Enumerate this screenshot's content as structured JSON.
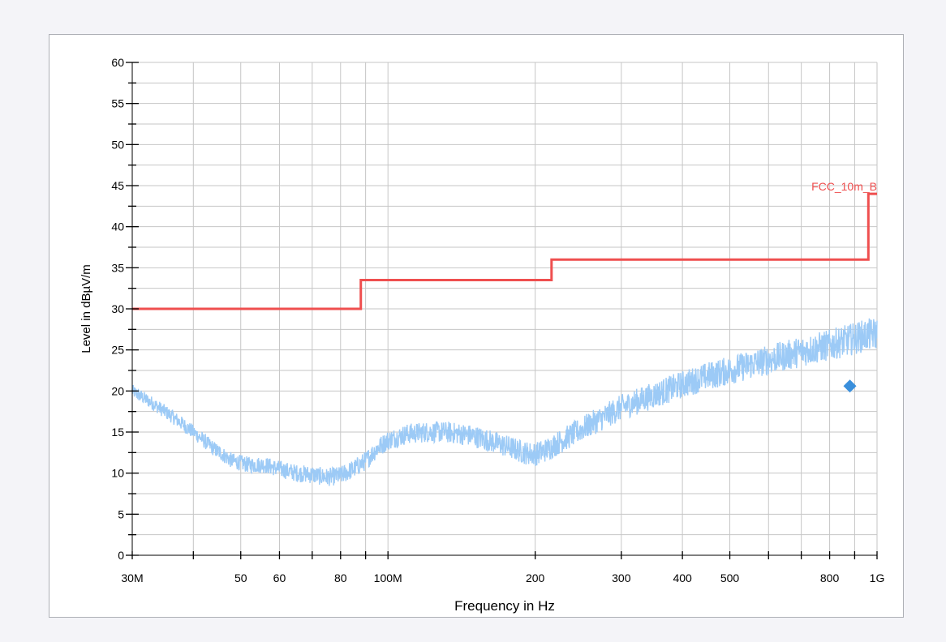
{
  "colors": {
    "limit": "#ef4f4f",
    "trace": "#9ccaf6",
    "marker": "#3a8fdc",
    "grid": "#c6c6c6",
    "axis": "#000000"
  },
  "chart_data": {
    "type": "line",
    "title": "",
    "xlabel": "Frequency in Hz",
    "ylabel": "Level in dBµV/m",
    "x_scale": "log",
    "xlim": [
      30000000,
      1000000000
    ],
    "ylim": [
      0,
      60
    ],
    "grid": true,
    "x_ticks": [
      {
        "value": 30000000,
        "label": "30M"
      },
      {
        "value": 50000000,
        "label": "50"
      },
      {
        "value": 60000000,
        "label": "60"
      },
      {
        "value": 80000000,
        "label": "80"
      },
      {
        "value": 100000000,
        "label": "100M"
      },
      {
        "value": 200000000,
        "label": "200"
      },
      {
        "value": 300000000,
        "label": "300"
      },
      {
        "value": 400000000,
        "label": "400"
      },
      {
        "value": 500000000,
        "label": "500"
      },
      {
        "value": 800000000,
        "label": "800"
      },
      {
        "value": 1000000000,
        "label": "1G"
      }
    ],
    "x_unlabeled_ticks": [
      40000000,
      70000000,
      90000000,
      600000000,
      700000000,
      900000000
    ],
    "y_ticks": [
      0,
      5,
      10,
      15,
      20,
      25,
      30,
      35,
      40,
      45,
      50,
      55,
      60
    ],
    "series": [
      {
        "name": "FCC_10m_B",
        "kind": "limit",
        "x": [
          30000000,
          88000000,
          88000000,
          216000000,
          216000000,
          960000000,
          960000000,
          1000000000
        ],
        "y": [
          30,
          30,
          33.5,
          33.5,
          36,
          36,
          44,
          44
        ]
      },
      {
        "kind": "measurement",
        "x": [
          30000000,
          33000000,
          36000000,
          40000000,
          44000000,
          48000000,
          52000000,
          56000000,
          60000000,
          65000000,
          70000000,
          75000000,
          80000000,
          85000000,
          90000000,
          95000000,
          100000000,
          110000000,
          120000000,
          130000000,
          140000000,
          150000000,
          160000000,
          170000000,
          180000000,
          190000000,
          200000000,
          210000000,
          220000000,
          240000000,
          260000000,
          280000000,
          300000000,
          350000000,
          400000000,
          450000000,
          500000000,
          550000000,
          600000000,
          650000000,
          700000000,
          750000000,
          800000000,
          850000000,
          900000000,
          950000000,
          1000000000
        ],
        "y": [
          20.0,
          18.5,
          17.0,
          15.0,
          13.0,
          11.5,
          11.0,
          11.0,
          10.5,
          10.0,
          9.8,
          9.5,
          9.7,
          10.5,
          11.5,
          13.0,
          14.0,
          14.8,
          15.0,
          15.0,
          14.8,
          14.5,
          14.0,
          13.5,
          13.0,
          12.5,
          12.3,
          12.8,
          13.5,
          14.8,
          16.0,
          17.0,
          18.0,
          19.5,
          20.8,
          21.8,
          22.5,
          23.2,
          23.8,
          24.3,
          24.8,
          25.2,
          25.6,
          26.0,
          26.4,
          26.8,
          27.0
        ]
      }
    ],
    "markers": [
      {
        "x": 880000000,
        "y": 20.6,
        "shape": "diamond"
      }
    ]
  }
}
